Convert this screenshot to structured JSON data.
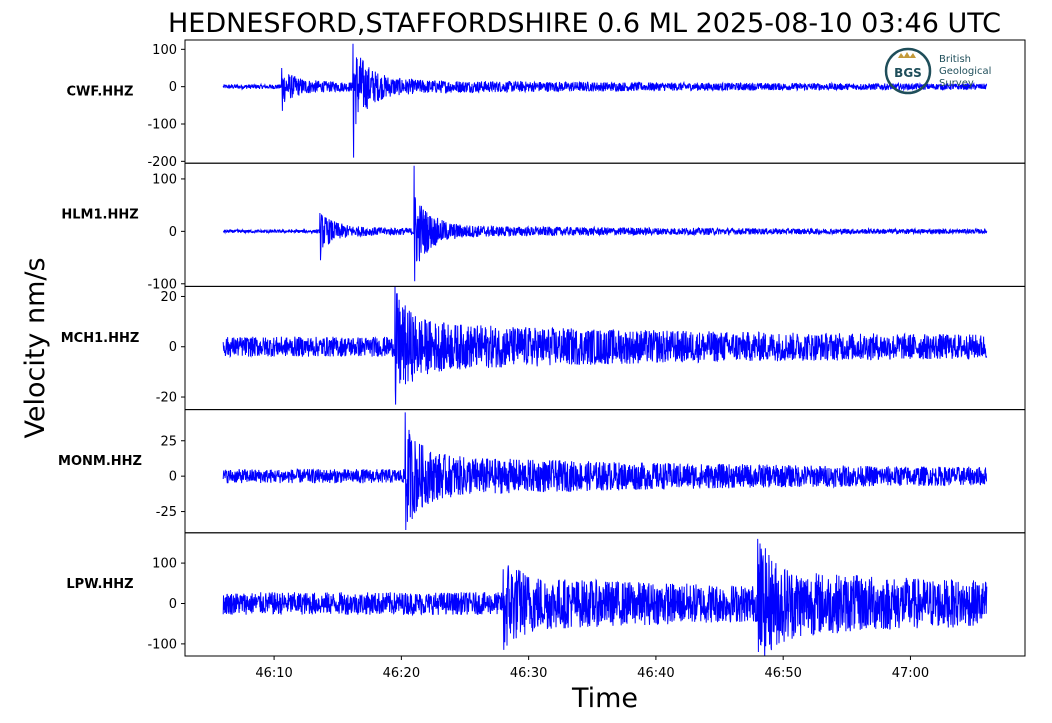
{
  "chart_data": {
    "type": "line",
    "title": "HEDNESFORD,STAFFORDSHIRE 0.6 ML   2025-08-10 03:46 UTC",
    "ylabel": "Velocity nm/s",
    "xlabel": "Time",
    "x_ticks": [
      "46:10",
      "46:20",
      "46:30",
      "46:40",
      "46:50",
      "47:00"
    ],
    "xlim": [
      "46:03",
      "47:09"
    ],
    "trace_range": [
      "46:06",
      "47:06"
    ],
    "line_color": "#0000ff",
    "grid": false,
    "legend": "none",
    "panels": [
      {
        "station": "CWF.HHZ",
        "ylim": [
          -205,
          125
        ],
        "y_ticks": [
          100,
          0,
          -100,
          -200
        ],
        "y_tick_labels": [
          "100",
          "0",
          "-100",
          "-200"
        ],
        "noise_level": 6,
        "coda_level": 8,
        "events": [
          {
            "t": "46:10.6",
            "peak_max": 50,
            "peak_min": -65
          },
          {
            "t": "46:16.2",
            "peak_max": 115,
            "peak_min": -190
          }
        ]
      },
      {
        "station": "HLM1.HHZ",
        "ylim": [
          -105,
          130
        ],
        "y_ticks": [
          100,
          0,
          -100
        ],
        "y_tick_labels": [
          "100",
          "0",
          "-100"
        ],
        "noise_level": 3,
        "coda_level": 5,
        "events": [
          {
            "t": "46:13.6",
            "peak_max": 35,
            "peak_min": -55
          },
          {
            "t": "46:21.0",
            "peak_max": 125,
            "peak_min": -95
          }
        ]
      },
      {
        "station": "MCH1.HHZ",
        "ylim": [
          -25,
          24
        ],
        "y_ticks": [
          20,
          0,
          -20
        ],
        "y_tick_labels": [
          "20",
          "0",
          "-20"
        ],
        "noise_level": 4,
        "coda_level": 6,
        "events": [
          {
            "t": "46:19.5",
            "peak_max": 24,
            "peak_min": -23
          }
        ]
      },
      {
        "station": "MONM.HHZ",
        "ylim": [
          -40,
          47
        ],
        "y_ticks": [
          25,
          0,
          -25
        ],
        "y_tick_labels": [
          "25",
          "0",
          "-25"
        ],
        "noise_level": 5,
        "coda_level": 10,
        "events": [
          {
            "t": "46:20.3",
            "peak_max": 45,
            "peak_min": -38
          }
        ]
      },
      {
        "station": "LPW.HHZ",
        "ylim": [
          -130,
          175
        ],
        "y_ticks": [
          100,
          0,
          -100
        ],
        "y_tick_labels": [
          "100",
          "0",
          "-100"
        ],
        "noise_level": 28,
        "coda_level": 40,
        "events": [
          {
            "t": "46:28.0",
            "peak_max": 85,
            "peak_min": -115
          },
          {
            "t": "46:48.0",
            "peak_max": 160,
            "peak_min": -120
          }
        ]
      }
    ]
  },
  "logo": {
    "abbr": "BGS",
    "line1": "British",
    "line2": "Geological",
    "line3": "Survey",
    "ring_color": "#1f4e5a",
    "accent_color": "#c49a3a"
  }
}
